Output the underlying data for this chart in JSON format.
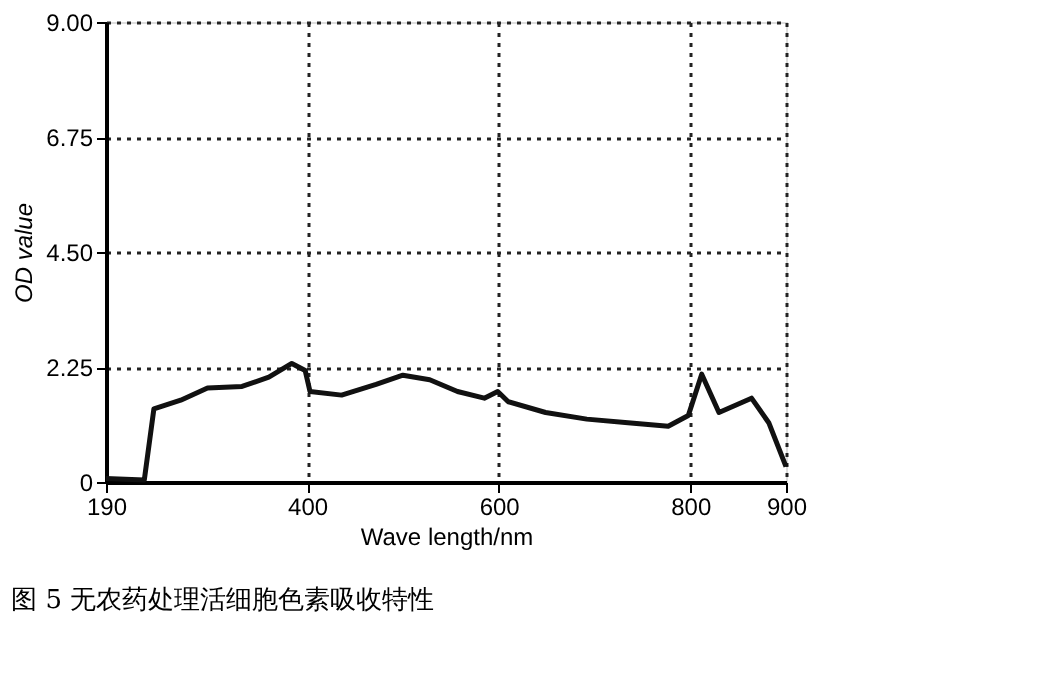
{
  "chart_data": {
    "type": "line",
    "title": "图 5  无农药处理活细胞色素吸收特性",
    "xlabel": "Wave length/nm",
    "ylabel": "OD value",
    "x": [
      190,
      230,
      240,
      268,
      296,
      332,
      360,
      384,
      398,
      403,
      436,
      472,
      500,
      528,
      557,
      585,
      599,
      610,
      649,
      692,
      735,
      777,
      798,
      812,
      830,
      864,
      882,
      900
    ],
    "series": [
      {
        "color": "#111111",
        "values": [
          0.07,
          0.04,
          1.43,
          1.6,
          1.84,
          1.87,
          2.05,
          2.32,
          2.18,
          1.77,
          1.7,
          1.91,
          2.09,
          2.0,
          1.77,
          1.64,
          1.77,
          1.57,
          1.36,
          1.23,
          1.16,
          1.09,
          1.3,
          2.11,
          1.36,
          1.64,
          1.16,
          0.3
        ]
      }
    ],
    "xlim": [
      190,
      900
    ],
    "xticks": [
      190,
      400,
      600,
      800,
      900
    ],
    "ylim": [
      0,
      9
    ],
    "yticks": [
      0,
      {
        "value": 2.25,
        "label": "2.25"
      },
      {
        "value": 4.5,
        "label": "4.50"
      },
      {
        "value": 6.75,
        "label": "6.75"
      },
      {
        "value": 9,
        "label": "9.00"
      }
    ],
    "grid": true,
    "marker": "none",
    "line_style": "solid"
  }
}
